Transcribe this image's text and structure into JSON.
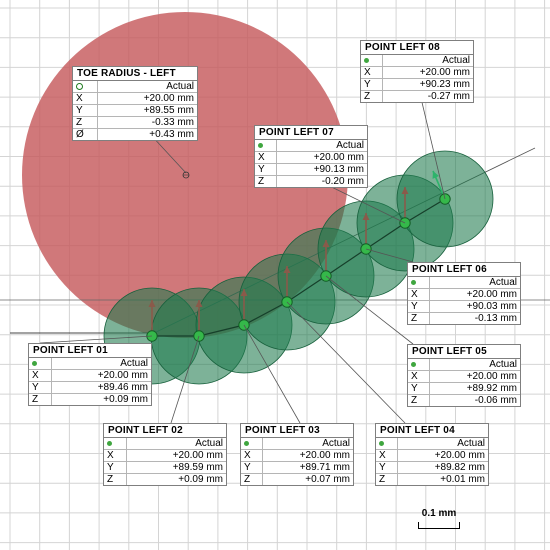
{
  "units": "mm",
  "toe_radius": {
    "title": "TOE RADIUS - LEFT",
    "header": "Actual",
    "icon": "circle-feature-icon",
    "rows": [
      {
        "axis": "X",
        "value": "+20.00 mm"
      },
      {
        "axis": "Y",
        "value": "+89.55 mm"
      },
      {
        "axis": "Z",
        "value": "-0.33 mm"
      },
      {
        "axis": "Ø",
        "value": "+0.43 mm"
      }
    ]
  },
  "points": [
    {
      "title": "POINT LEFT 01",
      "header": "Actual",
      "rows": [
        {
          "axis": "X",
          "value": "+20.00 mm"
        },
        {
          "axis": "Y",
          "value": "+89.46 mm"
        },
        {
          "axis": "Z",
          "value": "+0.09 mm"
        }
      ]
    },
    {
      "title": "POINT LEFT 02",
      "header": "Actual",
      "rows": [
        {
          "axis": "X",
          "value": "+20.00 mm"
        },
        {
          "axis": "Y",
          "value": "+89.59 mm"
        },
        {
          "axis": "Z",
          "value": "+0.09 mm"
        }
      ]
    },
    {
      "title": "POINT LEFT 03",
      "header": "Actual",
      "rows": [
        {
          "axis": "X",
          "value": "+20.00 mm"
        },
        {
          "axis": "Y",
          "value": "+89.71 mm"
        },
        {
          "axis": "Z",
          "value": "+0.07 mm"
        }
      ]
    },
    {
      "title": "POINT LEFT 04",
      "header": "Actual",
      "rows": [
        {
          "axis": "X",
          "value": "+20.00 mm"
        },
        {
          "axis": "Y",
          "value": "+89.82 mm"
        },
        {
          "axis": "Z",
          "value": "+0.01 mm"
        }
      ]
    },
    {
      "title": "POINT LEFT 05",
      "header": "Actual",
      "rows": [
        {
          "axis": "X",
          "value": "+20.00 mm"
        },
        {
          "axis": "Y",
          "value": "+89.92 mm"
        },
        {
          "axis": "Z",
          "value": "-0.06 mm"
        }
      ]
    },
    {
      "title": "POINT LEFT 06",
      "header": "Actual",
      "rows": [
        {
          "axis": "X",
          "value": "+20.00 mm"
        },
        {
          "axis": "Y",
          "value": "+90.03 mm"
        },
        {
          "axis": "Z",
          "value": "-0.13 mm"
        }
      ]
    },
    {
      "title": "POINT LEFT 07",
      "header": "Actual",
      "rows": [
        {
          "axis": "X",
          "value": "+20.00 mm"
        },
        {
          "axis": "Y",
          "value": "+90.13 mm"
        },
        {
          "axis": "Z",
          "value": "-0.20 mm"
        }
      ]
    },
    {
      "title": "POINT LEFT 08",
      "header": "Actual",
      "rows": [
        {
          "axis": "X",
          "value": "+20.00 mm"
        },
        {
          "axis": "Y",
          "value": "+90.23 mm"
        },
        {
          "axis": "Z",
          "value": "-0.27 mm"
        }
      ]
    }
  ],
  "scale_bar": {
    "label": "0.1 mm"
  },
  "colors": {
    "toe_circle": "#c65a5d",
    "point_disc": "#1f7a4e",
    "point_marker": "#35b84a",
    "grid": "#d4d4d4",
    "arrow": "#8a5a4a",
    "normal_arrow_last": "#2db36b"
  }
}
